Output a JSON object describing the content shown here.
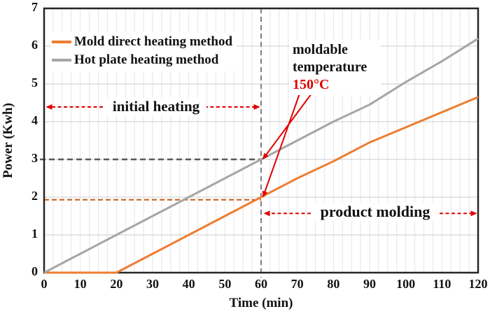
{
  "chart_data": {
    "type": "line",
    "title": "",
    "xlabel": "Time (min)",
    "ylabel": "Power (Kwh)",
    "xlim": [
      0,
      120
    ],
    "ylim": [
      0,
      7
    ],
    "x_ticks": [
      0,
      10,
      20,
      30,
      40,
      50,
      60,
      70,
      80,
      90,
      100,
      110,
      120
    ],
    "y_ticks": [
      0,
      1,
      2,
      3,
      4,
      5,
      6,
      7
    ],
    "x": [
      0,
      10,
      20,
      30,
      40,
      50,
      60,
      70,
      80,
      90,
      100,
      110,
      120
    ],
    "grid": {
      "x_minor_step": 2.5,
      "y_step": 1,
      "visible": true
    },
    "legend_position": "top-left",
    "series": [
      {
        "name": "Mold direct heating method",
        "color": "#ED7D31",
        "values": [
          0,
          0,
          0,
          0.5,
          1.0,
          1.5,
          2.0,
          2.5,
          2.95,
          3.45,
          3.85,
          4.25,
          4.65
        ]
      },
      {
        "name": "Hot plate heating method",
        "color": "#A6A6A6",
        "values": [
          0,
          0.5,
          1.0,
          1.5,
          2.0,
          2.5,
          3.0,
          3.5,
          4.0,
          4.45,
          5.05,
          5.6,
          6.2
        ]
      }
    ],
    "reference_lines": {
      "vertical_time_marker": {
        "x": 60,
        "color": "#808080",
        "style": "dashed"
      },
      "hot_plate_level": {
        "y": 3.0,
        "x_to": 60,
        "color": "#595959",
        "style": "dashed"
      },
      "mold_level": {
        "y": 1.93,
        "x_to": 60,
        "color": "#C55A11",
        "style": "dashed"
      }
    },
    "annotations": {
      "initial_heating": {
        "label": "initial heating",
        "arrow_y": 4.39,
        "x_from": 0,
        "x_to": 60
      },
      "product_molding": {
        "label": "product molding",
        "arrow_y": 1.57,
        "x_from": 60,
        "x_to": 120
      },
      "moldable_temperature": {
        "label_line1": "moldable",
        "label_line2": "temperature",
        "value": "150°C",
        "target_points": [
          {
            "x": 60,
            "y": 3.0
          },
          {
            "x": 60,
            "y": 2.0
          }
        ]
      }
    }
  },
  "colors": {
    "mold_line": "#ED7D31",
    "hot_plate_line": "#A6A6A6",
    "mold_ref_dash": "#C55A11",
    "hot_ref_dash": "#595959",
    "vertical_marker": "#808080",
    "annotation_red": "#E00000",
    "grid_vertical": "#e6e6e6",
    "grid_horizontal": "#cccccc",
    "axis": "#262626",
    "text": "#111111"
  }
}
